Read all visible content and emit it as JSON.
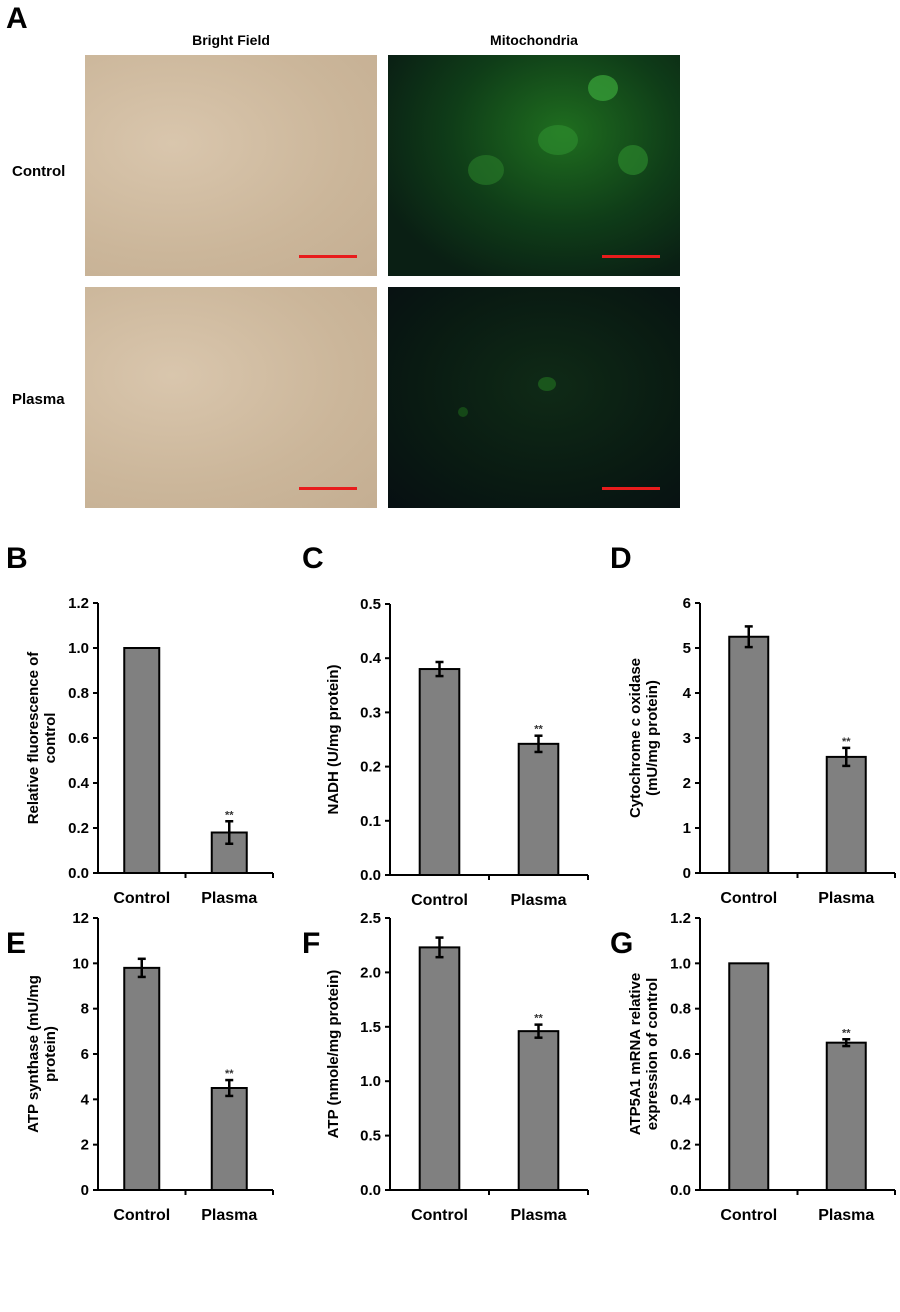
{
  "panel_a": {
    "label": "A",
    "columns": [
      "Bright Field",
      "Mitochondria"
    ],
    "rows": [
      "Control",
      "Plasma"
    ],
    "scale_bar_color": "#e81c1c"
  },
  "chart_data": [
    {
      "panel": "B",
      "type": "bar",
      "categories": [
        "Control",
        "Plasma"
      ],
      "values": [
        1.0,
        0.18
      ],
      "errors": [
        0,
        0.05
      ],
      "significance": [
        "",
        "**"
      ],
      "ylabel": "Relative fluorescence of control",
      "ylim": [
        0,
        1.2
      ],
      "yticks": [
        "0.0",
        "0.2",
        "0.4",
        "0.6",
        "0.8",
        "1.0",
        "1.2"
      ],
      "bar_color": "#808080",
      "grid": false
    },
    {
      "panel": "C",
      "type": "bar",
      "categories": [
        "Control",
        "Plasma"
      ],
      "values": [
        0.38,
        0.242
      ],
      "errors": [
        0.013,
        0.015
      ],
      "significance": [
        "",
        "**"
      ],
      "ylabel": "NADH (U/mg protein)",
      "ylim": [
        0,
        0.5
      ],
      "yticks": [
        "0.0",
        "0.1",
        "0.2",
        "0.3",
        "0.4",
        "0.5"
      ],
      "bar_color": "#808080",
      "grid": false
    },
    {
      "panel": "D",
      "type": "bar",
      "categories": [
        "Control",
        "Plasma"
      ],
      "values": [
        5.25,
        2.58
      ],
      "errors": [
        0.23,
        0.2
      ],
      "significance": [
        "",
        "**"
      ],
      "ylabel": "Cytochrome c oxidase (mU/mg protein)",
      "ylim": [
        0,
        6
      ],
      "yticks": [
        "0",
        "1",
        "2",
        "3",
        "4",
        "5",
        "6"
      ],
      "bar_color": "#808080",
      "grid": false
    },
    {
      "panel": "E",
      "type": "bar",
      "categories": [
        "Control",
        "Plasma"
      ],
      "values": [
        9.8,
        4.5
      ],
      "errors": [
        0.4,
        0.35
      ],
      "significance": [
        "",
        "**"
      ],
      "ylabel": "ATP synthase (mU/mg protein)",
      "ylim": [
        0,
        12
      ],
      "yticks": [
        "0",
        "2",
        "4",
        "6",
        "8",
        "10",
        "12"
      ],
      "bar_color": "#808080",
      "grid": false
    },
    {
      "panel": "F",
      "type": "bar",
      "categories": [
        "Control",
        "Plasma"
      ],
      "values": [
        2.23,
        1.46
      ],
      "errors": [
        0.09,
        0.06
      ],
      "significance": [
        "",
        "**"
      ],
      "ylabel": "ATP (nmole/mg protein)",
      "ylim": [
        0,
        2.5
      ],
      "yticks": [
        "0.0",
        "0.5",
        "1.0",
        "1.5",
        "2.0",
        "2.5"
      ],
      "bar_color": "#808080",
      "grid": false
    },
    {
      "panel": "G",
      "type": "bar",
      "categories": [
        "Control",
        "Plasma"
      ],
      "values": [
        1.0,
        0.65
      ],
      "errors": [
        0,
        0.015
      ],
      "significance": [
        "",
        "**"
      ],
      "ylabel": "ATP5A1 mRNA relative expression of control",
      "ylim": [
        0,
        1.2
      ],
      "yticks": [
        "0.0",
        "0.2",
        "0.4",
        "0.6",
        "0.8",
        "1.0",
        "1.2"
      ],
      "bar_color": "#808080",
      "grid": false
    }
  ]
}
